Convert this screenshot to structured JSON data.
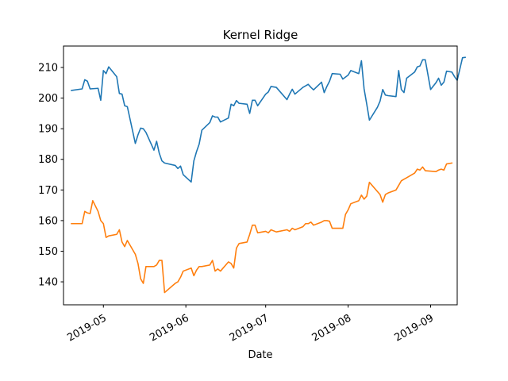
{
  "chart_data": {
    "type": "line",
    "title": "Kernel Ridge",
    "xlabel": "Date",
    "ylabel": "",
    "x_type": "date",
    "xlim": [
      "2019-04-16",
      "2019-09-11"
    ],
    "ylim": [
      132.5,
      217
    ],
    "xticks": [
      "2019-05-01",
      "2019-06-01",
      "2019-07-01",
      "2019-08-01",
      "2019-09-01"
    ],
    "xtick_labels": [
      "2019-05",
      "2019-06",
      "2019-07",
      "2019-08",
      "2019-09"
    ],
    "yticks": [
      140,
      150,
      160,
      170,
      180,
      190,
      200,
      210
    ],
    "grid": false,
    "legend": false,
    "series": [
      {
        "color": "#1f77b4",
        "points": [
          [
            "2019-04-19",
            202.5
          ],
          [
            "2019-04-23",
            203.0
          ],
          [
            "2019-04-24",
            206.0
          ],
          [
            "2019-04-25",
            205.5
          ],
          [
            "2019-04-26",
            203.0
          ],
          [
            "2019-04-29",
            203.2
          ],
          [
            "2019-04-30",
            199.3
          ],
          [
            "2019-05-01",
            209.0
          ],
          [
            "2019-05-02",
            208.0
          ],
          [
            "2019-05-03",
            210.2
          ],
          [
            "2019-05-06",
            207.0
          ],
          [
            "2019-05-07",
            201.5
          ],
          [
            "2019-05-08",
            201.3
          ],
          [
            "2019-05-09",
            197.5
          ],
          [
            "2019-05-10",
            197.2
          ],
          [
            "2019-05-13",
            185.2
          ],
          [
            "2019-05-14",
            188.0
          ],
          [
            "2019-05-15",
            190.2
          ],
          [
            "2019-05-16",
            190.0
          ],
          [
            "2019-05-17",
            188.8
          ],
          [
            "2019-05-20",
            183.0
          ],
          [
            "2019-05-21",
            185.9
          ],
          [
            "2019-05-22",
            182.0
          ],
          [
            "2019-05-23",
            179.5
          ],
          [
            "2019-05-24",
            178.8
          ],
          [
            "2019-05-28",
            178.0
          ],
          [
            "2019-05-29",
            177.0
          ],
          [
            "2019-05-30",
            177.8
          ],
          [
            "2019-05-31",
            175.0
          ],
          [
            "2019-06-03",
            172.6
          ],
          [
            "2019-06-04",
            179.5
          ],
          [
            "2019-06-05",
            182.5
          ],
          [
            "2019-06-06",
            185.0
          ],
          [
            "2019-06-07",
            189.5
          ],
          [
            "2019-06-10",
            192.0
          ],
          [
            "2019-06-11",
            194.2
          ],
          [
            "2019-06-12",
            193.8
          ],
          [
            "2019-06-13",
            193.8
          ],
          [
            "2019-06-14",
            192.2
          ],
          [
            "2019-06-17",
            193.5
          ],
          [
            "2019-06-18",
            198.0
          ],
          [
            "2019-06-19",
            197.5
          ],
          [
            "2019-06-20",
            199.2
          ],
          [
            "2019-06-21",
            198.3
          ],
          [
            "2019-06-24",
            198.0
          ],
          [
            "2019-06-25",
            195.0
          ],
          [
            "2019-06-26",
            199.3
          ],
          [
            "2019-06-27",
            199.3
          ],
          [
            "2019-06-28",
            197.5
          ],
          [
            "2019-07-01",
            201.3
          ],
          [
            "2019-07-02",
            202.0
          ],
          [
            "2019-07-03",
            203.8
          ],
          [
            "2019-07-05",
            203.5
          ],
          [
            "2019-07-09",
            199.5
          ],
          [
            "2019-07-10",
            201.3
          ],
          [
            "2019-07-11",
            202.9
          ],
          [
            "2019-07-12",
            201.3
          ],
          [
            "2019-07-15",
            203.5
          ],
          [
            "2019-07-16",
            204.0
          ],
          [
            "2019-07-17",
            204.5
          ],
          [
            "2019-07-18",
            203.5
          ],
          [
            "2019-07-19",
            202.7
          ],
          [
            "2019-07-22",
            205.2
          ],
          [
            "2019-07-23",
            201.8
          ],
          [
            "2019-07-24",
            203.8
          ],
          [
            "2019-07-25",
            205.5
          ],
          [
            "2019-07-26",
            208.0
          ],
          [
            "2019-07-29",
            207.8
          ],
          [
            "2019-07-30",
            206.2
          ],
          [
            "2019-08-01",
            207.5
          ],
          [
            "2019-08-02",
            209.0
          ],
          [
            "2019-08-05",
            208.0
          ],
          [
            "2019-08-06",
            212.2
          ],
          [
            "2019-08-07",
            203.0
          ],
          [
            "2019-08-08",
            198.0
          ],
          [
            "2019-08-09",
            192.8
          ],
          [
            "2019-08-12",
            197.0
          ],
          [
            "2019-08-13",
            199.0
          ],
          [
            "2019-08-14",
            202.8
          ],
          [
            "2019-08-15",
            201.0
          ],
          [
            "2019-08-16",
            200.8
          ],
          [
            "2019-08-19",
            200.5
          ],
          [
            "2019-08-20",
            209.0
          ],
          [
            "2019-08-21",
            202.8
          ],
          [
            "2019-08-22",
            201.8
          ],
          [
            "2019-08-23",
            206.5
          ],
          [
            "2019-08-26",
            208.5
          ],
          [
            "2019-08-27",
            210.2
          ],
          [
            "2019-08-28",
            210.5
          ],
          [
            "2019-08-29",
            212.5
          ],
          [
            "2019-08-30",
            212.5
          ],
          [
            "2019-09-01",
            202.8
          ],
          [
            "2019-09-03",
            205.0
          ],
          [
            "2019-09-04",
            206.5
          ],
          [
            "2019-09-05",
            204.2
          ],
          [
            "2019-09-06",
            205.2
          ],
          [
            "2019-09-07",
            208.8
          ],
          [
            "2019-09-09",
            208.5
          ],
          [
            "2019-09-10",
            207.0
          ],
          [
            "2019-09-11",
            205.8
          ],
          [
            "2019-09-13",
            213.2
          ],
          [
            "2019-09-14",
            213.3
          ]
        ]
      },
      {
        "color": "#ff7f0e",
        "points": [
          [
            "2019-04-19",
            159.0
          ],
          [
            "2019-04-23",
            159.0
          ],
          [
            "2019-04-24",
            163.0
          ],
          [
            "2019-04-25",
            162.5
          ],
          [
            "2019-04-26",
            162.3
          ],
          [
            "2019-04-27",
            166.5
          ],
          [
            "2019-04-29",
            163.0
          ],
          [
            "2019-04-30",
            160.0
          ],
          [
            "2019-05-01",
            159.0
          ],
          [
            "2019-05-02",
            154.5
          ],
          [
            "2019-05-03",
            155.0
          ],
          [
            "2019-05-06",
            155.5
          ],
          [
            "2019-05-07",
            157.0
          ],
          [
            "2019-05-08",
            153.0
          ],
          [
            "2019-05-09",
            151.5
          ],
          [
            "2019-05-10",
            153.5
          ],
          [
            "2019-05-13",
            149.0
          ],
          [
            "2019-05-14",
            146.0
          ],
          [
            "2019-05-15",
            141.0
          ],
          [
            "2019-05-16",
            139.5
          ],
          [
            "2019-05-17",
            145.0
          ],
          [
            "2019-05-20",
            145.0
          ],
          [
            "2019-05-21",
            145.5
          ],
          [
            "2019-05-22",
            147.0
          ],
          [
            "2019-05-23",
            147.0
          ],
          [
            "2019-05-24",
            136.5
          ],
          [
            "2019-05-28",
            139.5
          ],
          [
            "2019-05-29",
            140.0
          ],
          [
            "2019-05-30",
            141.5
          ],
          [
            "2019-05-31",
            143.5
          ],
          [
            "2019-06-03",
            144.5
          ],
          [
            "2019-06-04",
            142.0
          ],
          [
            "2019-06-05",
            143.8
          ],
          [
            "2019-06-06",
            145.0
          ],
          [
            "2019-06-07",
            145.0
          ],
          [
            "2019-06-10",
            145.5
          ],
          [
            "2019-06-11",
            147.0
          ],
          [
            "2019-06-12",
            143.5
          ],
          [
            "2019-06-13",
            144.2
          ],
          [
            "2019-06-14",
            143.5
          ],
          [
            "2019-06-17",
            146.5
          ],
          [
            "2019-06-18",
            146.0
          ],
          [
            "2019-06-19",
            144.5
          ],
          [
            "2019-06-20",
            151.0
          ],
          [
            "2019-06-21",
            152.5
          ],
          [
            "2019-06-24",
            153.0
          ],
          [
            "2019-06-25",
            155.5
          ],
          [
            "2019-06-26",
            158.5
          ],
          [
            "2019-06-27",
            158.5
          ],
          [
            "2019-06-28",
            156.0
          ],
          [
            "2019-07-01",
            156.5
          ],
          [
            "2019-07-02",
            156.0
          ],
          [
            "2019-07-03",
            157.0
          ],
          [
            "2019-07-05",
            156.3
          ],
          [
            "2019-07-09",
            157.0
          ],
          [
            "2019-07-10",
            156.5
          ],
          [
            "2019-07-11",
            157.5
          ],
          [
            "2019-07-12",
            157.0
          ],
          [
            "2019-07-15",
            158.0
          ],
          [
            "2019-07-16",
            159.0
          ],
          [
            "2019-07-17",
            159.0
          ],
          [
            "2019-07-18",
            159.5
          ],
          [
            "2019-07-19",
            158.5
          ],
          [
            "2019-07-22",
            159.5
          ],
          [
            "2019-07-23",
            160.0
          ],
          [
            "2019-07-24",
            160.0
          ],
          [
            "2019-07-25",
            159.8
          ],
          [
            "2019-07-26",
            157.5
          ],
          [
            "2019-07-29",
            157.5
          ],
          [
            "2019-07-30",
            157.5
          ],
          [
            "2019-07-31",
            162.0
          ],
          [
            "2019-08-01",
            163.5
          ],
          [
            "2019-08-02",
            165.5
          ],
          [
            "2019-08-05",
            166.5
          ],
          [
            "2019-08-06",
            168.3
          ],
          [
            "2019-08-07",
            167.0
          ],
          [
            "2019-08-08",
            168.0
          ],
          [
            "2019-08-09",
            172.5
          ],
          [
            "2019-08-12",
            169.5
          ],
          [
            "2019-08-13",
            168.5
          ],
          [
            "2019-08-14",
            166.0
          ],
          [
            "2019-08-15",
            168.5
          ],
          [
            "2019-08-16",
            169.0
          ],
          [
            "2019-08-19",
            170.0
          ],
          [
            "2019-08-20",
            171.5
          ],
          [
            "2019-08-21",
            173.0
          ],
          [
            "2019-08-22",
            173.5
          ],
          [
            "2019-08-23",
            174.0
          ],
          [
            "2019-08-26",
            175.5
          ],
          [
            "2019-08-27",
            176.8
          ],
          [
            "2019-08-28",
            176.5
          ],
          [
            "2019-08-29",
            177.5
          ],
          [
            "2019-08-30",
            176.3
          ],
          [
            "2019-09-03",
            176.0
          ],
          [
            "2019-09-04",
            176.5
          ],
          [
            "2019-09-05",
            176.8
          ],
          [
            "2019-09-06",
            176.5
          ],
          [
            "2019-09-07",
            178.5
          ],
          [
            "2019-09-09",
            178.8
          ]
        ]
      }
    ]
  }
}
